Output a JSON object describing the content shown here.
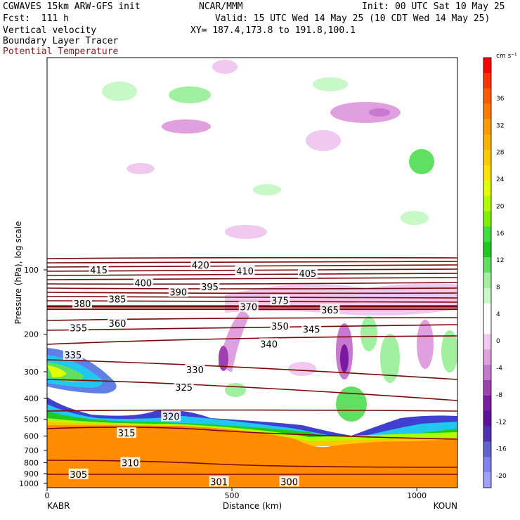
{
  "header": {
    "line1_left": "CGWAVES 15km ARW-GFS init",
    "line1_mid": "NCAR/MMM",
    "line1_right": "Init: 00 UTC Sat 10 May 25",
    "line2_left": "Fcst:  111 h",
    "line2_right": "Valid: 15 UTC Wed 14 May 25 (10 CDT Wed 14 May 25)",
    "line3_left": "Vertical velocity",
    "line3_right": "XY= 187.4,173.8 to 191.8,100.1",
    "line4_left": "Boundary Layer Tracer",
    "line5_left": "Potential Temperature"
  },
  "colors": {
    "theta_contour": "#7a0a0a",
    "terrain_fill": "#ff8c00",
    "title_red": "#8b1a1a"
  },
  "chart_data": {
    "type": "heatmap",
    "xlabel": "Distance (km)",
    "ylabel": "Pressure (hPa), log scale",
    "x_ticks": [
      0,
      500,
      1000
    ],
    "x_range": [
      0,
      1110
    ],
    "y_scale": "log",
    "y_ticks": [
      100,
      200,
      300,
      400,
      500,
      600,
      700,
      800,
      900,
      1000
    ],
    "endpoints": {
      "left": "KABR",
      "right": "KOUN"
    },
    "colorbar": {
      "unit": "cm s⁻¹",
      "labels": [
        36,
        32,
        28,
        24,
        20,
        16,
        12,
        8,
        4,
        0,
        -4,
        -8,
        -12,
        -16,
        -20
      ],
      "colors": [
        "#ff0000",
        "#ff3300",
        "#ff5a00",
        "#ff7a00",
        "#ff9a00",
        "#ffb000",
        "#ffc800",
        "#ffe000",
        "#e0ff00",
        "#b0ff00",
        "#80f000",
        "#40e040",
        "#20c820",
        "#60e060",
        "#a0f0a0",
        "#c8f8c8",
        "#ffffff",
        "#ffffff",
        "#f0c8f0",
        "#e0a0e0",
        "#c878d0",
        "#a040b0",
        "#7a1aa0",
        "#6010a0",
        "#5030b0",
        "#6060d0",
        "#8080f0",
        "#a0a0ff"
      ]
    },
    "theta_levels": [
      {
        "label": "420",
        "x": 415,
        "p": 95
      },
      {
        "label": "415",
        "x": 140,
        "p": 100
      },
      {
        "label": "410",
        "x": 535,
        "p": 101
      },
      {
        "label": "405",
        "x": 705,
        "p": 104
      },
      {
        "label": "400",
        "x": 260,
        "p": 115
      },
      {
        "label": "395",
        "x": 440,
        "p": 120
      },
      {
        "label": "390",
        "x": 355,
        "p": 127
      },
      {
        "label": "385",
        "x": 190,
        "p": 137
      },
      {
        "label": "380",
        "x": 95,
        "p": 144
      },
      {
        "label": "375",
        "x": 630,
        "p": 139
      },
      {
        "label": "370",
        "x": 545,
        "p": 149
      },
      {
        "label": "365",
        "x": 765,
        "p": 154
      },
      {
        "label": "360",
        "x": 190,
        "p": 178
      },
      {
        "label": "355",
        "x": 85,
        "p": 187
      },
      {
        "label": "350",
        "x": 630,
        "p": 183
      },
      {
        "label": "345",
        "x": 715,
        "p": 190
      },
      {
        "label": "340",
        "x": 600,
        "p": 222
      },
      {
        "label": "335",
        "x": 70,
        "p": 250
      },
      {
        "label": "330",
        "x": 400,
        "p": 293
      },
      {
        "label": "325",
        "x": 370,
        "p": 354
      },
      {
        "label": "320",
        "x": 335,
        "p": 485
      },
      {
        "label": "315",
        "x": 215,
        "p": 580
      },
      {
        "label": "310",
        "x": 225,
        "p": 800
      },
      {
        "label": "305",
        "x": 85,
        "p": 905
      },
      {
        "label": "301",
        "x": 465,
        "p": 980
      },
      {
        "label": "300",
        "x": 655,
        "p": 980
      }
    ]
  }
}
